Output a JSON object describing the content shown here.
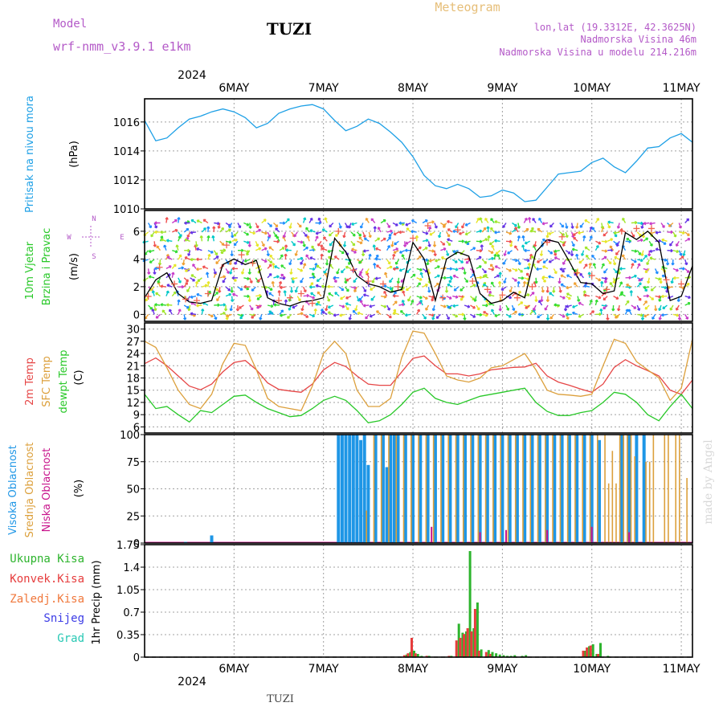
{
  "header": {
    "model_label": "Model",
    "model_name": "wrf-nmm_v3.9.1 e1km",
    "station": "TUZI",
    "product": "Meteogram",
    "location": "lon,lat (19.3312E, 42.3625N)",
    "elevation": "Nadmorska Visina 46m",
    "model_elevation": "Nadmorska Visina u modelu 214.216m"
  },
  "time_axis": {
    "year": "2024",
    "day_labels": [
      "6MAY",
      "7MAY",
      "8MAY",
      "9MAY",
      "10MAY",
      "11MAY"
    ],
    "range_hours": [
      -12,
      135
    ]
  },
  "footer": {
    "station": "TUZI",
    "credit": "made by Angel"
  },
  "colors": {
    "pressure": "#1ea0e6",
    "temp2m": "#e64646",
    "sfc_temp": "#dca03c",
    "dewpoint": "#28c828",
    "cloud_high": "#1e96e6",
    "cloud_mid": "#dca03c",
    "cloud_low": "#c8148c",
    "precip_total": "#2db42d",
    "precip_conv": "#e63c3c",
    "precip_frozen": "#f0783c",
    "snow": "#3c3ce6",
    "graupel": "#28c8b4",
    "wind_speed": "#000000",
    "wind_gust": "#f06450"
  },
  "chart_data": [
    {
      "type": "line",
      "ylabel_title": "Pritisak na nivou mora",
      "ylabel_unit": "(hPa)",
      "ylim": [
        1010,
        1017.6
      ],
      "yticks": [
        "1010",
        "1012",
        "1014",
        "1016"
      ],
      "yticks_values": [
        1010,
        1012,
        1014,
        1016
      ],
      "grid": true,
      "series": [
        {
          "key": "pressure",
          "x": [
            -12,
            -9,
            -6,
            -3,
            0,
            3,
            6,
            9,
            12,
            15,
            18,
            21,
            24,
            27,
            30,
            33,
            36,
            39,
            42,
            45,
            48,
            51,
            54,
            57,
            60,
            63,
            66,
            69,
            72,
            75,
            78,
            81,
            84,
            87,
            90,
            93,
            96,
            99,
            102,
            105,
            108,
            111,
            114,
            117,
            120,
            123,
            126,
            129,
            132,
            135
          ],
          "values": [
            1016.1,
            1014.7,
            1014.9,
            1015.6,
            1016.2,
            1016.4,
            1016.7,
            1016.9,
            1016.7,
            1016.3,
            1015.6,
            1015.9,
            1016.6,
            1016.9,
            1017.1,
            1017.2,
            1016.9,
            1016.1,
            1015.4,
            1015.7,
            1016.2,
            1015.9,
            1015.3,
            1014.6,
            1013.6,
            1012.3,
            1011.6,
            1011.4,
            1011.7,
            1011.4,
            1010.8,
            1010.9,
            1011.3,
            1011.1,
            1010.5,
            1010.6,
            1011.5,
            1012.4,
            1012.5,
            1012.6,
            1013.2,
            1013.5,
            1012.9,
            1012.5,
            1013.3,
            1014.2,
            1014.3,
            1014.9,
            1015.2,
            1014.6
          ]
        }
      ]
    },
    {
      "type": "line",
      "ylabel_title_1": "10m Vjetar",
      "ylabel_title_2": "Brzina i Pravac",
      "ylabel_unit": "(m/s)",
      "compass": {
        "n": "N",
        "s": "S",
        "e": "E",
        "w": "W"
      },
      "ylim": [
        -0.5,
        7.5
      ],
      "yticks": [
        "0",
        "2",
        "4",
        "6"
      ],
      "yticks_values": [
        0,
        2,
        4,
        6
      ],
      "grid": true,
      "series": [
        {
          "key": "speed",
          "x": [
            -12,
            -9,
            -6,
            -3,
            0,
            3,
            6,
            9,
            12,
            15,
            18,
            21,
            24,
            27,
            30,
            33,
            36,
            39,
            42,
            45,
            48,
            51,
            54,
            57,
            60,
            63,
            66,
            69,
            72,
            75,
            78,
            81,
            84,
            87,
            90,
            93,
            96,
            99,
            102,
            105,
            108,
            111,
            114,
            117,
            120,
            123,
            126,
            129,
            132,
            135
          ],
          "values": [
            1.2,
            2.5,
            3.0,
            1.5,
            0.9,
            0.8,
            1.0,
            3.6,
            4.0,
            3.6,
            3.9,
            1.2,
            0.8,
            0.6,
            0.9,
            1.0,
            1.2,
            5.5,
            4.5,
            2.8,
            2.2,
            2.0,
            1.6,
            1.8,
            5.2,
            4.0,
            1.0,
            4.0,
            4.5,
            4.2,
            1.5,
            0.8,
            1.0,
            1.6,
            1.2,
            4.5,
            5.4,
            5.2,
            3.8,
            2.3,
            2.2,
            1.5,
            1.7,
            5.9,
            5.4,
            6.0,
            5.2,
            1.0,
            1.3,
            3.5
          ]
        },
        {
          "key": "gust",
          "x": [
            -11,
            -8,
            -4,
            -1,
            2,
            5,
            10,
            14,
            17,
            24,
            27,
            30,
            33,
            40,
            44,
            48,
            52,
            56,
            60,
            64,
            68,
            72,
            76,
            80,
            84,
            88,
            92,
            96,
            100,
            104,
            108,
            112,
            116,
            120,
            124,
            128,
            132
          ],
          "values": [
            1.3,
            3.4,
            2.2,
            1.1,
            1.0,
            1.5,
            5.0,
            4.3,
            3.7,
            1.0,
            1.2,
            1.5,
            0.8,
            6.0,
            3.2,
            2.4,
            2.2,
            2.0,
            5.5,
            6.4,
            1.2,
            6.1,
            2.4,
            1.8,
            1.4,
            1.2,
            2.0,
            5.2,
            5.6,
            3.0,
            2.8,
            1.8,
            6.0,
            6.2,
            6.2,
            2.5,
            2.2
          ]
        }
      ]
    },
    {
      "type": "line",
      "ylabel_title_1": "2m Temp",
      "ylabel_title_2": "SFC Temp",
      "ylabel_title_3": "dewpt Temp",
      "ylabel_unit": "(C)",
      "ylim": [
        4.5,
        31.5
      ],
      "yticks": [
        "6",
        "9",
        "12",
        "15",
        "18",
        "21",
        "24",
        "27",
        "30"
      ],
      "yticks_values": [
        6,
        9,
        12,
        15,
        18,
        21,
        24,
        27,
        30
      ],
      "grid": true,
      "series": [
        {
          "key": "temp2m",
          "x": [
            -12,
            -9,
            -6,
            -3,
            0,
            3,
            6,
            9,
            12,
            15,
            18,
            21,
            24,
            27,
            30,
            33,
            36,
            39,
            42,
            45,
            48,
            51,
            54,
            57,
            60,
            63,
            66,
            69,
            72,
            75,
            78,
            81,
            84,
            87,
            90,
            93,
            96,
            99,
            102,
            105,
            108,
            111,
            114,
            117,
            120,
            123,
            126,
            129,
            132,
            135
          ],
          "values": [
            21.5,
            22.9,
            21.0,
            18.5,
            16.0,
            15.1,
            16.5,
            19.5,
            21.8,
            22.3,
            20.0,
            16.8,
            15.2,
            14.8,
            14.5,
            16.5,
            20.0,
            21.8,
            20.8,
            18.5,
            16.5,
            16.2,
            16.2,
            19.5,
            22.8,
            23.4,
            21.0,
            19.0,
            19.0,
            18.5,
            19.0,
            20.0,
            20.3,
            20.6,
            20.7,
            21.6,
            18.5,
            17.0,
            16.2,
            15.3,
            14.5,
            16.5,
            20.6,
            22.5,
            21.0,
            19.8,
            18.5,
            15.0,
            14.0,
            17.5
          ]
        },
        {
          "key": "sfc_temp",
          "x": [
            -12,
            -9,
            -6,
            -3,
            0,
            3,
            6,
            9,
            12,
            15,
            18,
            21,
            24,
            27,
            30,
            33,
            36,
            39,
            42,
            45,
            48,
            51,
            54,
            57,
            60,
            63,
            66,
            69,
            72,
            75,
            78,
            81,
            84,
            87,
            90,
            93,
            96,
            99,
            102,
            105,
            108,
            111,
            114,
            117,
            120,
            123,
            126,
            129,
            132,
            135
          ],
          "values": [
            27.0,
            25.5,
            20.5,
            15.0,
            11.5,
            10.5,
            14.0,
            21.5,
            26.5,
            26.0,
            20.0,
            13.0,
            11.0,
            10.5,
            10.0,
            16.0,
            24.0,
            27.0,
            24.0,
            15.0,
            11.0,
            11.0,
            13.0,
            23.0,
            29.5,
            29.0,
            24.0,
            18.5,
            17.5,
            17.0,
            18.0,
            20.5,
            21.0,
            22.5,
            24.0,
            20.0,
            15.0,
            14.0,
            13.8,
            13.5,
            14.0,
            21.0,
            27.5,
            26.5,
            22.0,
            20.0,
            18.0,
            12.5,
            15.5,
            27.5
          ]
        },
        {
          "key": "dewpoint",
          "x": [
            -12,
            -9,
            -6,
            -3,
            0,
            3,
            6,
            9,
            12,
            15,
            18,
            21,
            24,
            27,
            30,
            33,
            36,
            39,
            42,
            45,
            48,
            51,
            54,
            57,
            60,
            63,
            66,
            69,
            72,
            75,
            78,
            81,
            84,
            87,
            90,
            93,
            96,
            99,
            102,
            105,
            108,
            111,
            114,
            117,
            120,
            123,
            126,
            129,
            132,
            135
          ],
          "values": [
            14.0,
            10.5,
            11.0,
            9.0,
            7.2,
            10.0,
            9.5,
            11.5,
            13.5,
            13.8,
            12.0,
            10.5,
            9.5,
            8.5,
            8.8,
            10.5,
            12.5,
            13.5,
            12.5,
            10.0,
            7.0,
            7.5,
            9.0,
            11.5,
            14.5,
            15.5,
            13.0,
            12.0,
            11.5,
            12.5,
            13.5,
            14.0,
            14.5,
            15.0,
            15.5,
            12.0,
            9.8,
            8.8,
            8.8,
            9.5,
            10.0,
            12.0,
            14.5,
            14.0,
            12.0,
            9.0,
            7.5,
            11.0,
            14.0,
            10.5
          ]
        }
      ]
    },
    {
      "type": "bar",
      "ylabel_title_1": "Visoka Oblacnost",
      "ylabel_title_2": "Srednja Oblacnost",
      "ylabel_title_3": "Niska Oblacnost",
      "ylabel_unit": "(%)",
      "ylim": [
        0,
        100
      ],
      "yticks": [
        "0",
        "25",
        "50",
        "75",
        "100"
      ],
      "yticks_values": [
        0,
        25,
        50,
        75,
        100
      ],
      "grid": true,
      "series": [
        {
          "key": "high",
          "x": [
            -1,
            6,
            40,
            41,
            42,
            43,
            44,
            45,
            46,
            47,
            48,
            50,
            52,
            53,
            54,
            55,
            56,
            58,
            60,
            62,
            64,
            66,
            68,
            70,
            72,
            74,
            76,
            78,
            80,
            82,
            84,
            86,
            88,
            90,
            92,
            94,
            96,
            98,
            100,
            102,
            104,
            106,
            108,
            110,
            116,
            118,
            120,
            122
          ],
          "values": [
            1,
            7,
            100,
            100,
            100,
            100,
            100,
            100,
            95,
            100,
            72,
            100,
            100,
            70,
            100,
            100,
            100,
            100,
            100,
            100,
            100,
            100,
            100,
            100,
            100,
            100,
            100,
            100,
            100,
            100,
            100,
            100,
            100,
            100,
            100,
            100,
            100,
            100,
            100,
            100,
            100,
            100,
            100,
            95,
            100,
            100,
            100,
            100
          ]
        },
        {
          "key": "mid",
          "x": [
            47,
            49,
            51,
            53,
            55,
            57,
            59,
            61,
            63,
            65,
            67,
            69,
            71,
            73,
            75,
            77,
            79,
            81,
            83,
            85,
            87,
            89,
            91,
            93,
            95,
            97,
            99,
            101,
            103,
            105,
            107,
            109,
            111,
            112,
            113,
            114,
            115,
            116,
            117,
            118,
            119,
            122,
            123,
            124,
            127,
            128,
            130,
            131,
            133
          ],
          "values": [
            30,
            100,
            100,
            100,
            100,
            100,
            100,
            100,
            100,
            100,
            100,
            100,
            100,
            100,
            100,
            100,
            100,
            100,
            100,
            100,
            100,
            100,
            100,
            100,
            100,
            100,
            100,
            100,
            100,
            100,
            100,
            100,
            100,
            55,
            85,
            55,
            100,
            100,
            100,
            100,
            80,
            75,
            75,
            100,
            100,
            100,
            100,
            100,
            60
          ]
        },
        {
          "key": "low",
          "x": [
            65,
            78,
            85,
            96,
            108,
            118
          ],
          "values": [
            15,
            10,
            12,
            12,
            15,
            10
          ]
        }
      ]
    },
    {
      "type": "bar",
      "legend": [
        "Ukupna Kisa",
        "Konvek.Kisa",
        "Zaledj.Kisa",
        "Snijeg",
        "Grad"
      ],
      "ylabel_unit": "1hr Precip (mm)",
      "ylim": [
        0,
        1.75
      ],
      "yticks": [
        "0",
        "0.35",
        "0.7",
        "1.05",
        "1.4",
        "1.75"
      ],
      "yticks_values": [
        0,
        0.35,
        0.7,
        1.05,
        1.4,
        1.75
      ],
      "grid": true,
      "series": [
        {
          "key": "total",
          "x": [
            58,
            59,
            60,
            61,
            62,
            64,
            70,
            72,
            73,
            74,
            75,
            76,
            77,
            78,
            80,
            81,
            82,
            83,
            84,
            85,
            86,
            87,
            89,
            90,
            106,
            107,
            108,
            109,
            110,
            112
          ],
          "values": [
            0.04,
            0.08,
            0.1,
            0.05,
            0.02,
            0.02,
            0.02,
            0.52,
            0.38,
            0.4,
            1.65,
            0.45,
            0.85,
            0.12,
            0.11,
            0.08,
            0.06,
            0.04,
            0.03,
            0.02,
            0.02,
            0.03,
            0.02,
            0.03,
            0.1,
            0.17,
            0.2,
            0.05,
            0.22,
            0.02
          ]
        },
        {
          "key": "conv",
          "x": [
            58,
            59,
            60,
            61,
            64,
            70,
            72,
            73,
            74,
            75,
            76,
            77,
            78,
            80,
            81,
            106,
            107,
            108,
            110
          ],
          "values": [
            0.03,
            0.06,
            0.3,
            0.06,
            0.02,
            0.02,
            0.26,
            0.3,
            0.36,
            0.45,
            0.4,
            0.75,
            0.1,
            0.08,
            0.05,
            0.1,
            0.15,
            0.18,
            0.05
          ]
        }
      ]
    }
  ]
}
